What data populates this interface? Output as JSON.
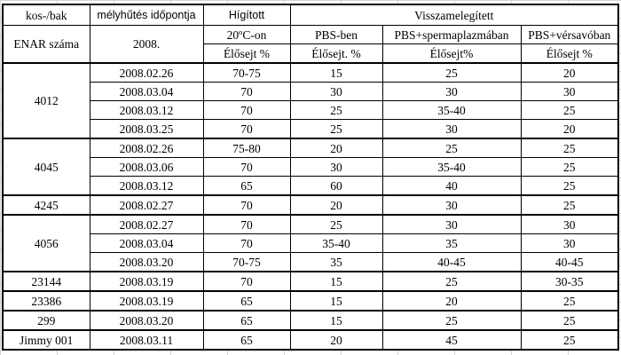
{
  "header": {
    "r1": [
      "kos-/bak",
      "mélyhűtés időpontja",
      "Hígított",
      "Visszamelegített"
    ],
    "r2": [
      "ENAR száma",
      "2008.",
      "20ºC-on",
      "PBS-ben",
      "PBS+spermaplazmában",
      "PBS+vérsavóban"
    ],
    "r3": [
      "Élősejt %",
      "Élősejt. %",
      "Élősejt%",
      "Élősejt %"
    ]
  },
  "groups": [
    {
      "enar": "4012",
      "rows": [
        {
          "date": "2008.02.26",
          "hig": "70-75",
          "pbs": "15",
          "sperma": "25",
          "ver": "20"
        },
        {
          "date": "2008.03.04",
          "hig": "70",
          "pbs": "30",
          "sperma": "30",
          "ver": "30"
        },
        {
          "date": "2008.03.12",
          "hig": "70",
          "pbs": "25",
          "sperma": "35-40",
          "ver": "25"
        },
        {
          "date": "2008.03.25",
          "hig": "70",
          "pbs": "25",
          "sperma": "30",
          "ver": "20"
        }
      ]
    },
    {
      "enar": "4045",
      "rows": [
        {
          "date": "2008.02.26",
          "hig": "75-80",
          "pbs": "20",
          "sperma": "25",
          "ver": "25"
        },
        {
          "date": "2008.03.06",
          "hig": "70",
          "pbs": "30",
          "sperma": "35-40",
          "ver": "25"
        },
        {
          "date": "2008.03.12",
          "hig": "65",
          "pbs": "60",
          "sperma": "40",
          "ver": "25"
        }
      ]
    },
    {
      "enar": "4245",
      "rows": [
        {
          "date": "2008.02.27",
          "hig": "70",
          "pbs": "20",
          "sperma": "30",
          "ver": "25"
        }
      ]
    },
    {
      "enar": "4056",
      "rows": [
        {
          "date": "2008.02.27",
          "hig": "70",
          "pbs": "25",
          "sperma": "30",
          "ver": "30"
        },
        {
          "date": "2008.03.04",
          "hig": "70",
          "pbs": "35-40",
          "sperma": "35",
          "ver": "30"
        },
        {
          "date": "2008.03.20",
          "hig": "70-75",
          "pbs": "35",
          "sperma": "40-45",
          "ver": "40-45"
        }
      ]
    },
    {
      "enar": "23144",
      "rows": [
        {
          "date": "2008.03.19",
          "hig": "70",
          "pbs": "15",
          "sperma": "25",
          "ver": "30-35"
        }
      ]
    },
    {
      "enar": "23386",
      "rows": [
        {
          "date": "2008.03.19",
          "hig": "65",
          "pbs": "15",
          "sperma": "20",
          "ver": "25"
        }
      ]
    },
    {
      "enar": "299",
      "rows": [
        {
          "date": "2008.03.20",
          "hig": "65",
          "pbs": "15",
          "sperma": "25",
          "ver": "25"
        }
      ]
    },
    {
      "enar": "Jimmy 001",
      "rows": [
        {
          "date": "2008.03.11",
          "hig": "65",
          "pbs": "20",
          "sperma": "45",
          "ver": "25"
        }
      ]
    }
  ]
}
